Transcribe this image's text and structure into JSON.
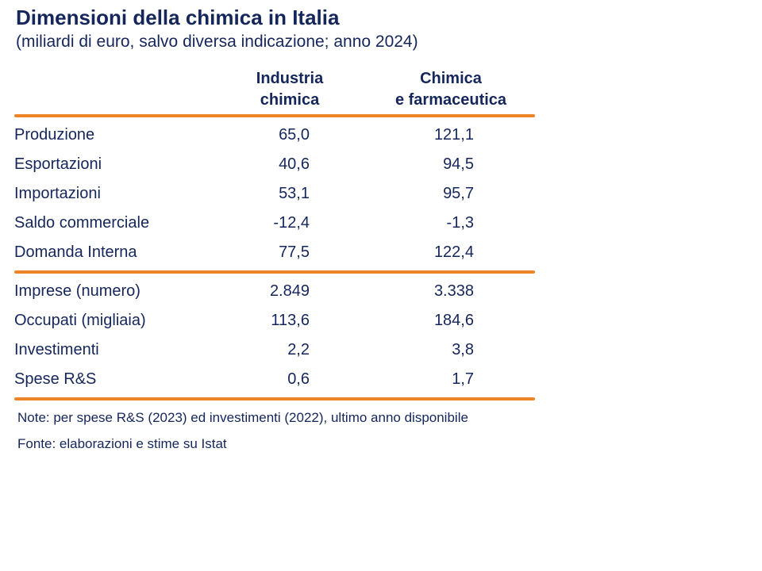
{
  "slide": {
    "title": "Dimensioni della chimica in Italia",
    "subtitle": "(miliardi di euro, salvo diversa indicazione; anno 2024)"
  },
  "colors": {
    "text_navy": "#15265B",
    "rule_orange": "#ED8528",
    "background": "#FFFFFF"
  },
  "table": {
    "column_headers": [
      {
        "line1": "Industria",
        "line2": "chimica"
      },
      {
        "line1": "Chimica",
        "line2": "e farmaceutica"
      }
    ],
    "sections": [
      {
        "rows": [
          {
            "label": "Produzione",
            "industria_chimica": "65,0",
            "chimica_e_farmaceutica": "121,1"
          },
          {
            "label": "Esportazioni",
            "industria_chimica": "40,6",
            "chimica_e_farmaceutica": "94,5"
          },
          {
            "label": "Importazioni",
            "industria_chimica": "53,1",
            "chimica_e_farmaceutica": "95,7"
          },
          {
            "label": "Saldo commerciale",
            "industria_chimica": "-12,4",
            "chimica_e_farmaceutica": "-1,3"
          },
          {
            "label": "Domanda Interna",
            "industria_chimica": "77,5",
            "chimica_e_farmaceutica": "122,4"
          }
        ]
      },
      {
        "rows": [
          {
            "label": "Imprese (numero)",
            "industria_chimica": "2.849",
            "chimica_e_farmaceutica": "3.338"
          },
          {
            "label": "Occupati (migliaia)",
            "industria_chimica": "113,6",
            "chimica_e_farmaceutica": "184,6"
          },
          {
            "label": "Investimenti",
            "industria_chimica": "2,2",
            "chimica_e_farmaceutica": "3,8"
          },
          {
            "label": "Spese R&S",
            "industria_chimica": "0,6",
            "chimica_e_farmaceutica": "1,7"
          }
        ]
      }
    ]
  },
  "footnotes": {
    "note": "Note: per spese R&S (2023) ed investimenti (2022), ultimo anno disponibile",
    "source": "Fonte: elaborazioni e stime su Istat"
  }
}
